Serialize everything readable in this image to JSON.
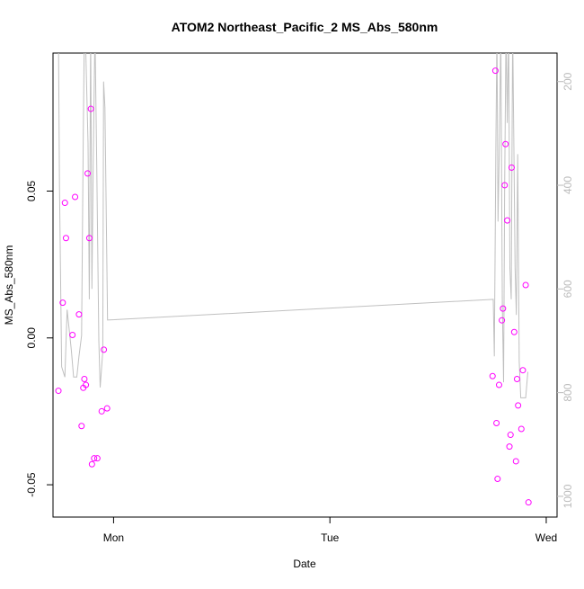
{
  "chart_data": {
    "type": "scatter",
    "title": "ATOM2 Northeast_Pacific_2 MS_Abs_580nm",
    "xlabel": "Date",
    "ylabel": "MS_Abs_580nm",
    "x_axis": {
      "unit": "days",
      "range": [
        -0.28,
        2.05
      ],
      "ticks": [
        {
          "value": 0,
          "label": "Mon"
        },
        {
          "value": 1,
          "label": "Tue"
        },
        {
          "value": 2,
          "label": "Wed"
        }
      ]
    },
    "y_axis": {
      "range": [
        -0.061,
        0.097
      ],
      "ticks": [
        {
          "value": -0.05,
          "label": "-0.05"
        },
        {
          "value": 0.0,
          "label": "0.00"
        },
        {
          "value": 0.05,
          "label": "0.05"
        }
      ]
    },
    "y2_axis": {
      "range": [
        1040,
        145
      ],
      "reversed": true,
      "ticks": [
        {
          "value": 200,
          "label": "200"
        },
        {
          "value": 400,
          "label": "400"
        },
        {
          "value": 600,
          "label": "600"
        },
        {
          "value": 800,
          "label": "800"
        },
        {
          "value": 1000,
          "label": "1000"
        }
      ]
    },
    "grid": false,
    "colors": {
      "points": "#ff00ff",
      "line": "#c0c0c0",
      "y2_axis": "#bbbbbb",
      "axis": "#000000"
    },
    "series": [
      {
        "type": "scatter",
        "axis": "left",
        "points": [
          [
            -0.255,
            -0.018
          ],
          [
            -0.235,
            0.012
          ],
          [
            -0.225,
            0.046
          ],
          [
            -0.22,
            0.034
          ],
          [
            -0.19,
            0.001
          ],
          [
            -0.178,
            0.048
          ],
          [
            -0.16,
            0.008
          ],
          [
            -0.148,
            -0.03
          ],
          [
            -0.14,
            -0.017
          ],
          [
            -0.135,
            -0.014
          ],
          [
            -0.128,
            -0.016
          ],
          [
            -0.12,
            0.056
          ],
          [
            -0.112,
            0.034
          ],
          [
            -0.105,
            0.078
          ],
          [
            -0.1,
            -0.043
          ],
          [
            -0.09,
            -0.041
          ],
          [
            -0.075,
            -0.041
          ],
          [
            -0.055,
            -0.025
          ],
          [
            -0.045,
            -0.004
          ],
          [
            -0.03,
            -0.024
          ],
          [
            1.752,
            -0.013
          ],
          [
            1.765,
            0.091
          ],
          [
            1.77,
            -0.029
          ],
          [
            1.775,
            -0.048
          ],
          [
            1.782,
            -0.016
          ],
          [
            1.795,
            0.006
          ],
          [
            1.8,
            0.01
          ],
          [
            1.808,
            0.052
          ],
          [
            1.812,
            0.066
          ],
          [
            1.82,
            0.04
          ],
          [
            1.83,
            -0.037
          ],
          [
            1.835,
            -0.033
          ],
          [
            1.84,
            0.058
          ],
          [
            1.852,
            0.002
          ],
          [
            1.86,
            -0.042
          ],
          [
            1.865,
            -0.014
          ],
          [
            1.87,
            -0.023
          ],
          [
            1.885,
            -0.031
          ],
          [
            1.892,
            -0.011
          ],
          [
            1.905,
            0.018
          ],
          [
            1.918,
            -0.056
          ]
        ]
      },
      {
        "type": "line",
        "axis": "right",
        "points": [
          [
            -0.255,
            100
          ],
          [
            -0.25,
            400
          ],
          [
            -0.24,
            750
          ],
          [
            -0.225,
            770
          ],
          [
            -0.215,
            640
          ],
          [
            -0.205,
            680
          ],
          [
            -0.195,
            720
          ],
          [
            -0.185,
            770
          ],
          [
            -0.17,
            770
          ],
          [
            -0.16,
            730
          ],
          [
            -0.148,
            690
          ],
          [
            -0.14,
            300
          ],
          [
            -0.135,
            100
          ],
          [
            -0.128,
            150
          ],
          [
            -0.118,
            320
          ],
          [
            -0.112,
            620
          ],
          [
            -0.106,
            100
          ],
          [
            -0.1,
            600
          ],
          [
            -0.094,
            350
          ],
          [
            -0.086,
            100
          ],
          [
            -0.078,
            350
          ],
          [
            -0.068,
            700
          ],
          [
            -0.062,
            790
          ],
          [
            -0.05,
            720
          ],
          [
            -0.046,
            200
          ],
          [
            -0.04,
            250
          ],
          [
            -0.028,
            660
          ],
          [
            1.755,
            620
          ],
          [
            1.76,
            730
          ],
          [
            1.767,
            330
          ],
          [
            1.772,
            100
          ],
          [
            1.777,
            470
          ],
          [
            1.784,
            300
          ],
          [
            1.79,
            100
          ],
          [
            1.797,
            630
          ],
          [
            1.803,
            780
          ],
          [
            1.808,
            400
          ],
          [
            1.814,
            100
          ],
          [
            1.82,
            280
          ],
          [
            1.826,
            100
          ],
          [
            1.832,
            560
          ],
          [
            1.838,
            620
          ],
          [
            1.845,
            100
          ],
          [
            1.85,
            300
          ],
          [
            1.856,
            560
          ],
          [
            1.862,
            650
          ],
          [
            1.868,
            340
          ],
          [
            1.875,
            740
          ],
          [
            1.882,
            810
          ],
          [
            1.905,
            810
          ],
          [
            1.915,
            760
          ]
        ]
      }
    ]
  }
}
